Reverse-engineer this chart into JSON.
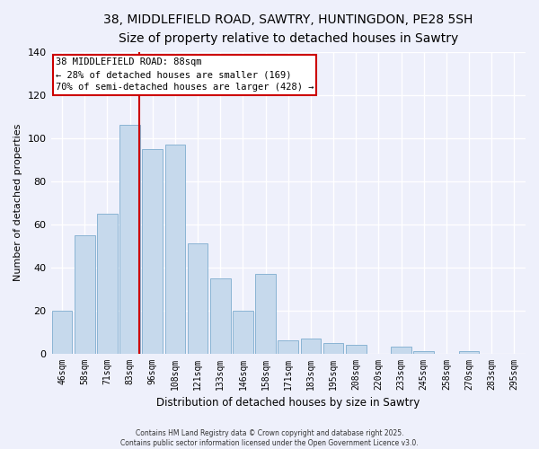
{
  "title": "38, MIDDLEFIELD ROAD, SAWTRY, HUNTINGDON, PE28 5SH",
  "subtitle": "Size of property relative to detached houses in Sawtry",
  "xlabel": "Distribution of detached houses by size in Sawtry",
  "ylabel": "Number of detached properties",
  "categories": [
    "46sqm",
    "58sqm",
    "71sqm",
    "83sqm",
    "96sqm",
    "108sqm",
    "121sqm",
    "133sqm",
    "146sqm",
    "158sqm",
    "171sqm",
    "183sqm",
    "195sqm",
    "208sqm",
    "220sqm",
    "233sqm",
    "245sqm",
    "258sqm",
    "270sqm",
    "283sqm",
    "295sqm"
  ],
  "values": [
    20,
    55,
    65,
    106,
    95,
    97,
    51,
    35,
    20,
    37,
    6,
    7,
    5,
    4,
    0,
    3,
    1,
    0,
    1,
    0,
    0
  ],
  "bar_color": "#c6d9ec",
  "bar_edge_color": "#8ab4d4",
  "vline_color": "#cc0000",
  "vline_x": 3.42,
  "annotation_title": "38 MIDDLEFIELD ROAD: 88sqm",
  "annotation_line1": "← 28% of detached houses are smaller (169)",
  "annotation_line2": "70% of semi-detached houses are larger (428) →",
  "annotation_box_facecolor": "#ffffff",
  "annotation_box_edgecolor": "#cc0000",
  "ylim": [
    0,
    140
  ],
  "yticks": [
    0,
    20,
    40,
    60,
    80,
    100,
    120,
    140
  ],
  "footer1": "Contains HM Land Registry data © Crown copyright and database right 2025.",
  "footer2": "Contains public sector information licensed under the Open Government Licence v3.0.",
  "background_color": "#eef0fb",
  "plot_bg_color": "#eef0fb",
  "grid_color": "#ffffff",
  "title_fontsize": 10,
  "subtitle_fontsize": 8.5
}
